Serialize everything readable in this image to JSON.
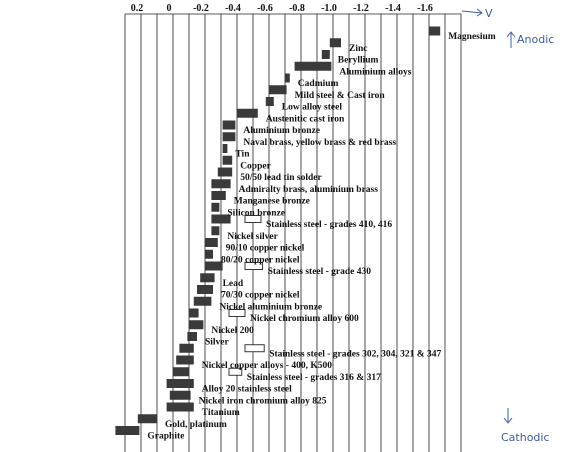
{
  "chart_data": {
    "type": "bar",
    "xlabel": "",
    "ylabel": "",
    "x_ticks": [
      "0.2",
      "0",
      "-0.2",
      "-0.4",
      "-0.6",
      "-0.8",
      "-1.0",
      "-1.2",
      "-1.4",
      "-1.6"
    ],
    "x_tick_values": [
      0.2,
      0,
      -0.2,
      -0.4,
      -0.6,
      -0.8,
      -1.0,
      -1.2,
      -1.4,
      -1.6
    ],
    "xlim": [
      0.4,
      -1.8
    ],
    "x_reversed": true,
    "grid": true,
    "metals": [
      {
        "name": "Magnesium",
        "range": [
          -1.6,
          -1.67
        ]
      },
      {
        "name": "Zinc",
        "range": [
          -0.98,
          -1.05
        ]
      },
      {
        "name": "Beryllium",
        "range": [
          -0.93,
          -0.98
        ]
      },
      {
        "name": "Aluminium alloys",
        "range": [
          -0.76,
          -0.99
        ]
      },
      {
        "name": "Cadmium",
        "range": [
          -0.7,
          -0.73
        ]
      },
      {
        "name": "Mild steel & Cast iron",
        "range": [
          -0.6,
          -0.71
        ]
      },
      {
        "name": "Low alloy steel",
        "range": [
          -0.58,
          -0.63
        ]
      },
      {
        "name": "Austenitic cast iron",
        "range": [
          -0.4,
          -0.53
        ]
      },
      {
        "name": "Aluminium bronze",
        "range": [
          -0.31,
          -0.39
        ]
      },
      {
        "name": "Naval brass, yellow brass & red brass",
        "range": [
          -0.31,
          -0.39
        ]
      },
      {
        "name": "Tin",
        "range": [
          -0.31,
          -0.34
        ]
      },
      {
        "name": "Copper",
        "range": [
          -0.31,
          -0.37
        ]
      },
      {
        "name": "50/50 lead tin solder",
        "range": [
          -0.28,
          -0.37
        ]
      },
      {
        "name": "Admiralty brass, aluminium brass",
        "range": [
          -0.24,
          -0.36
        ]
      },
      {
        "name": "Manganese bronze",
        "range": [
          -0.24,
          -0.33
        ]
      },
      {
        "name": "Silicon bronze",
        "range": [
          -0.24,
          -0.29
        ]
      },
      {
        "name": "Stainless steel - grades 410, 416",
        "range": [
          -0.24,
          -0.36
        ],
        "passive_range": [
          -0.45,
          -0.55
        ]
      },
      {
        "name": "Nickel silver",
        "range": [
          -0.24,
          -0.29
        ]
      },
      {
        "name": "90/10 copper nickel",
        "range": [
          -0.2,
          -0.28
        ]
      },
      {
        "name": "80/20 copper nickel",
        "range": [
          -0.2,
          -0.25
        ]
      },
      {
        "name": "Stainless steel - grade 430",
        "range": [
          -0.2,
          -0.31
        ],
        "passive_range": [
          -0.45,
          -0.56
        ]
      },
      {
        "name": "Lead",
        "range": [
          -0.17,
          -0.26
        ]
      },
      {
        "name": "70/30 copper nickel",
        "range": [
          -0.15,
          -0.25
        ]
      },
      {
        "name": "Nickel aluminium bronze",
        "range": [
          -0.13,
          -0.24
        ]
      },
      {
        "name": "Nickel chromium alloy 600",
        "range": [
          -0.1,
          -0.16
        ],
        "passive_range": [
          -0.35,
          -0.45
        ]
      },
      {
        "name": "Nickel 200",
        "range": [
          -0.1,
          -0.19
        ]
      },
      {
        "name": "Silver",
        "range": [
          -0.09,
          -0.15
        ]
      },
      {
        "name": "Stainless steel - grades 302, 304, 321 & 347",
        "range": [
          -0.04,
          -0.13
        ],
        "passive_range": [
          -0.45,
          -0.57
        ]
      },
      {
        "name": "Nickel copper alloys - 400, K500",
        "range": [
          -0.02,
          -0.13
        ]
      },
      {
        "name": "Stainless steel - grades 316 & 317",
        "range": [
          0.0,
          -0.1
        ],
        "passive_range": [
          -0.35,
          -0.43
        ]
      },
      {
        "name": "Alloy 20 stainless steel",
        "range": [
          0.04,
          -0.13
        ]
      },
      {
        "name": "Nickel iron chromium alloy 825",
        "range": [
          0.02,
          -0.11
        ]
      },
      {
        "name": "Titanium",
        "range": [
          0.04,
          -0.13
        ]
      },
      {
        "name": "Gold, platinum",
        "range": [
          0.22,
          0.1
        ]
      },
      {
        "name": "Graphite",
        "range": [
          0.36,
          0.21
        ]
      }
    ]
  },
  "annotations": {
    "volt_mark": "V",
    "anodic": "Anodic",
    "cathodic": "Cathodic"
  }
}
